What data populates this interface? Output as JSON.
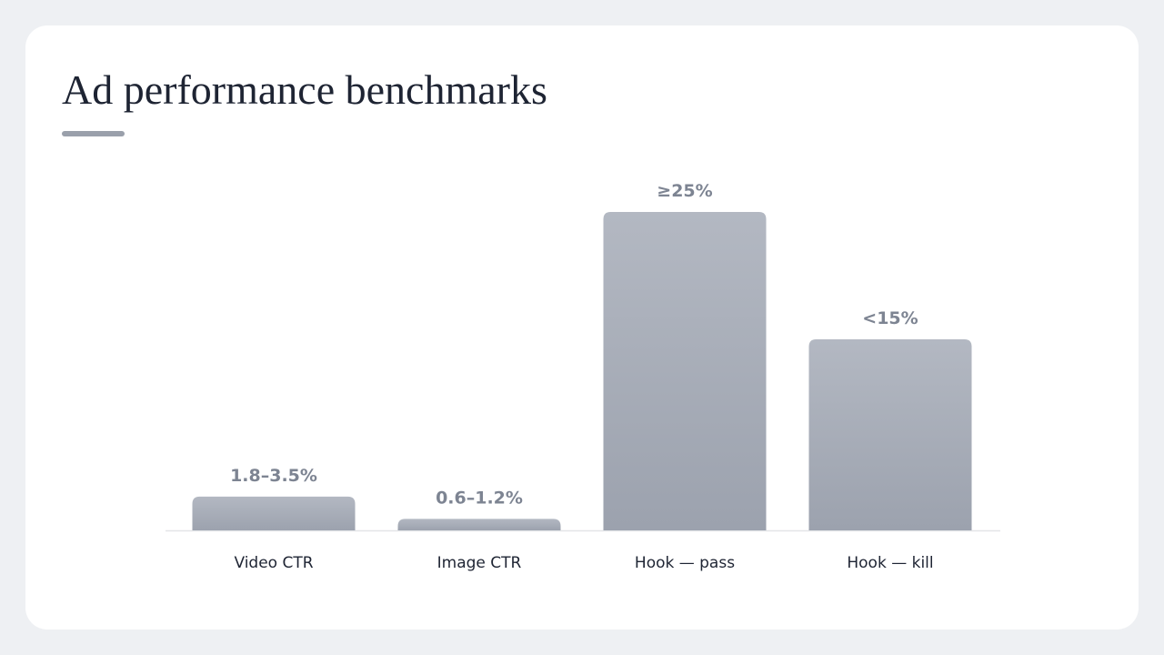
{
  "chart_data": {
    "type": "bar",
    "title": "Ad performance benchmarks",
    "categories": [
      "Video CTR",
      "Image CTR",
      "Hook — pass",
      "Hook — kill"
    ],
    "values": [
      2.65,
      0.9,
      25,
      15
    ],
    "value_labels": [
      "1.8–3.5%",
      "0.6–1.2%",
      "≥25%",
      "<15%"
    ],
    "color": "#a8adb8",
    "ylim": [
      0,
      25
    ]
  }
}
